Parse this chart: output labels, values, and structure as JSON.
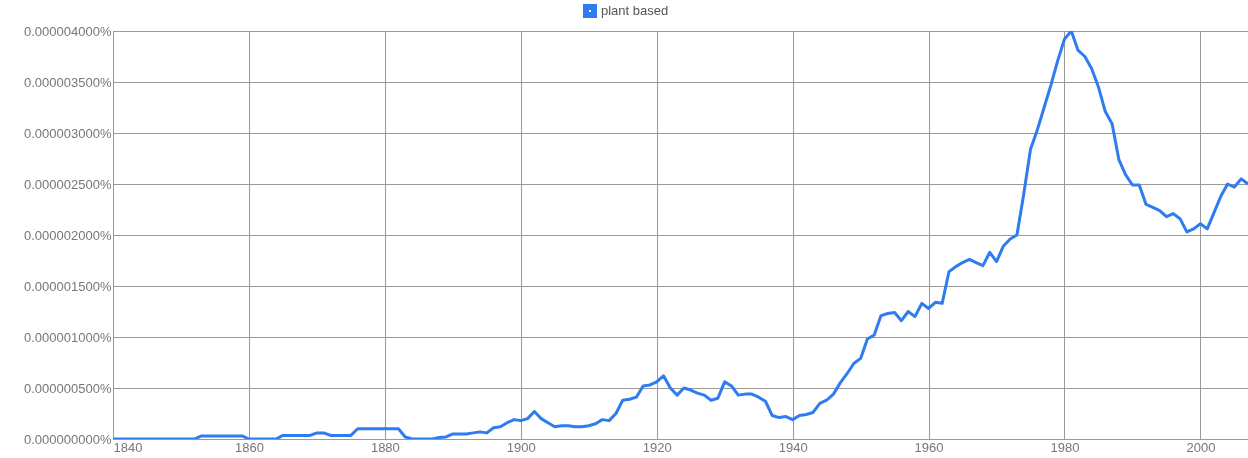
{
  "chart_data": {
    "type": "line",
    "x": [
      1840,
      1841,
      1842,
      1843,
      1844,
      1845,
      1846,
      1847,
      1848,
      1849,
      1850,
      1851,
      1852,
      1853,
      1854,
      1855,
      1856,
      1857,
      1858,
      1859,
      1860,
      1861,
      1862,
      1863,
      1864,
      1865,
      1866,
      1867,
      1868,
      1869,
      1870,
      1871,
      1872,
      1873,
      1874,
      1875,
      1876,
      1877,
      1878,
      1879,
      1880,
      1881,
      1882,
      1883,
      1884,
      1885,
      1886,
      1887,
      1888,
      1889,
      1890,
      1891,
      1892,
      1893,
      1894,
      1895,
      1896,
      1897,
      1898,
      1899,
      1900,
      1901,
      1902,
      1903,
      1904,
      1905,
      1906,
      1907,
      1908,
      1909,
      1910,
      1911,
      1912,
      1913,
      1914,
      1915,
      1916,
      1917,
      1918,
      1919,
      1920,
      1921,
      1922,
      1923,
      1924,
      1925,
      1926,
      1927,
      1928,
      1929,
      1930,
      1931,
      1932,
      1933,
      1934,
      1935,
      1936,
      1937,
      1938,
      1939,
      1940,
      1941,
      1942,
      1943,
      1944,
      1945,
      1946,
      1947,
      1948,
      1949,
      1950,
      1951,
      1952,
      1953,
      1954,
      1955,
      1956,
      1957,
      1958,
      1959,
      1960,
      1961,
      1962,
      1963,
      1964,
      1965,
      1966,
      1967,
      1968,
      1969,
      1970,
      1971,
      1972,
      1973,
      1974,
      1975,
      1976,
      1977,
      1978,
      1979,
      1980,
      1981,
      1982,
      1983,
      1984,
      1985,
      1986,
      1987,
      1988,
      1989,
      1990,
      1991,
      1992,
      1993,
      1994,
      1995,
      1996,
      1997,
      1998,
      1999,
      2000,
      2001,
      2002,
      2003,
      2004,
      2005,
      2006,
      2007
    ],
    "series": [
      {
        "name": "plant based",
        "color": "#2f7bf0",
        "values": [
          0,
          0,
          0,
          0,
          0,
          0,
          0,
          0,
          0,
          0,
          0,
          0,
          0,
          3e-08,
          3e-08,
          3e-08,
          3e-08,
          3e-08,
          3e-08,
          3e-08,
          0,
          0,
          0,
          0,
          0,
          3.5e-08,
          3.5e-08,
          3.5e-08,
          3.5e-08,
          3.5e-08,
          6e-08,
          6e-08,
          3.5e-08,
          3.5e-08,
          3.5e-08,
          3.5e-08,
          1e-07,
          1e-07,
          1e-07,
          1e-07,
          1e-07,
          1e-07,
          1e-07,
          2e-08,
          0,
          0,
          0,
          0,
          1.5e-08,
          2e-08,
          5e-08,
          5e-08,
          5e-08,
          6e-08,
          7e-08,
          6e-08,
          1.1e-07,
          1.2e-07,
          1.6e-07,
          1.9e-07,
          1.8e-07,
          2e-07,
          2.7e-07,
          2e-07,
          1.6e-07,
          1.2e-07,
          1.3e-07,
          1.3e-07,
          1.2e-07,
          1.2e-07,
          1.3e-07,
          1.5e-07,
          1.9e-07,
          1.8e-07,
          2.5e-07,
          3.8e-07,
          3.9e-07,
          4.1e-07,
          5.2e-07,
          5.3e-07,
          5.6e-07,
          6.2e-07,
          5e-07,
          4.3e-07,
          5e-07,
          4.8e-07,
          4.5e-07,
          4.3e-07,
          3.8e-07,
          4e-07,
          5.6e-07,
          5.2e-07,
          4.3e-07,
          4.4e-07,
          4.4e-07,
          4.1e-07,
          3.7e-07,
          2.3e-07,
          2.1e-07,
          2.2e-07,
          1.9e-07,
          2.3e-07,
          2.4e-07,
          2.6e-07,
          3.5e-07,
          3.8e-07,
          4.4e-07,
          5.5e-07,
          6.4e-07,
          7.4e-07,
          7.9e-07,
          9.8e-07,
          1.02e-06,
          1.21e-06,
          1.23e-06,
          1.24e-06,
          1.16e-06,
          1.25e-06,
          1.2e-06,
          1.33e-06,
          1.28e-06,
          1.34e-06,
          1.33e-06,
          1.64e-06,
          1.69e-06,
          1.73e-06,
          1.76e-06,
          1.73e-06,
          1.7e-06,
          1.83e-06,
          1.74e-06,
          1.89e-06,
          1.96e-06,
          2e-06,
          2.4e-06,
          2.84e-06,
          3.03e-06,
          3.25e-06,
          3.47e-06,
          3.71e-06,
          3.92e-06,
          4e-06,
          3.81e-06,
          3.75e-06,
          3.63e-06,
          3.45e-06,
          3.21e-06,
          3.09e-06,
          2.74e-06,
          2.59e-06,
          2.49e-06,
          2.49e-06,
          2.3e-06,
          2.27e-06,
          2.24e-06,
          2.18e-06,
          2.21e-06,
          2.16e-06,
          2.03e-06,
          2.06e-06,
          2.11e-06,
          2.06e-06,
          2.22e-06,
          2.38e-06,
          2.5e-06,
          2.47e-06,
          2.55e-06,
          2.5e-06
        ]
      }
    ],
    "xlim": [
      1840,
      2007
    ],
    "xticks": [
      1840,
      1860,
      1880,
      1900,
      1920,
      1940,
      1960,
      1980,
      2000
    ],
    "ylim": [
      0,
      4e-06
    ],
    "yticks": [
      {
        "value": 0,
        "label": "0.000000000%"
      },
      {
        "value": 5e-07,
        "label": "0.000000500%"
      },
      {
        "value": 1e-06,
        "label": "0.000001000%"
      },
      {
        "value": 1.5e-06,
        "label": "0.000001500%"
      },
      {
        "value": 2e-06,
        "label": "0.000002000%"
      },
      {
        "value": 2.5e-06,
        "label": "0.000002500%"
      },
      {
        "value": 3e-06,
        "label": "0.000003000%"
      },
      {
        "value": 3.5e-06,
        "label": "0.000003500%"
      },
      {
        "value": 4e-06,
        "label": "0.000004000%"
      }
    ],
    "grid": true,
    "legend": "top",
    "marker": "none",
    "line_style": "solid"
  }
}
